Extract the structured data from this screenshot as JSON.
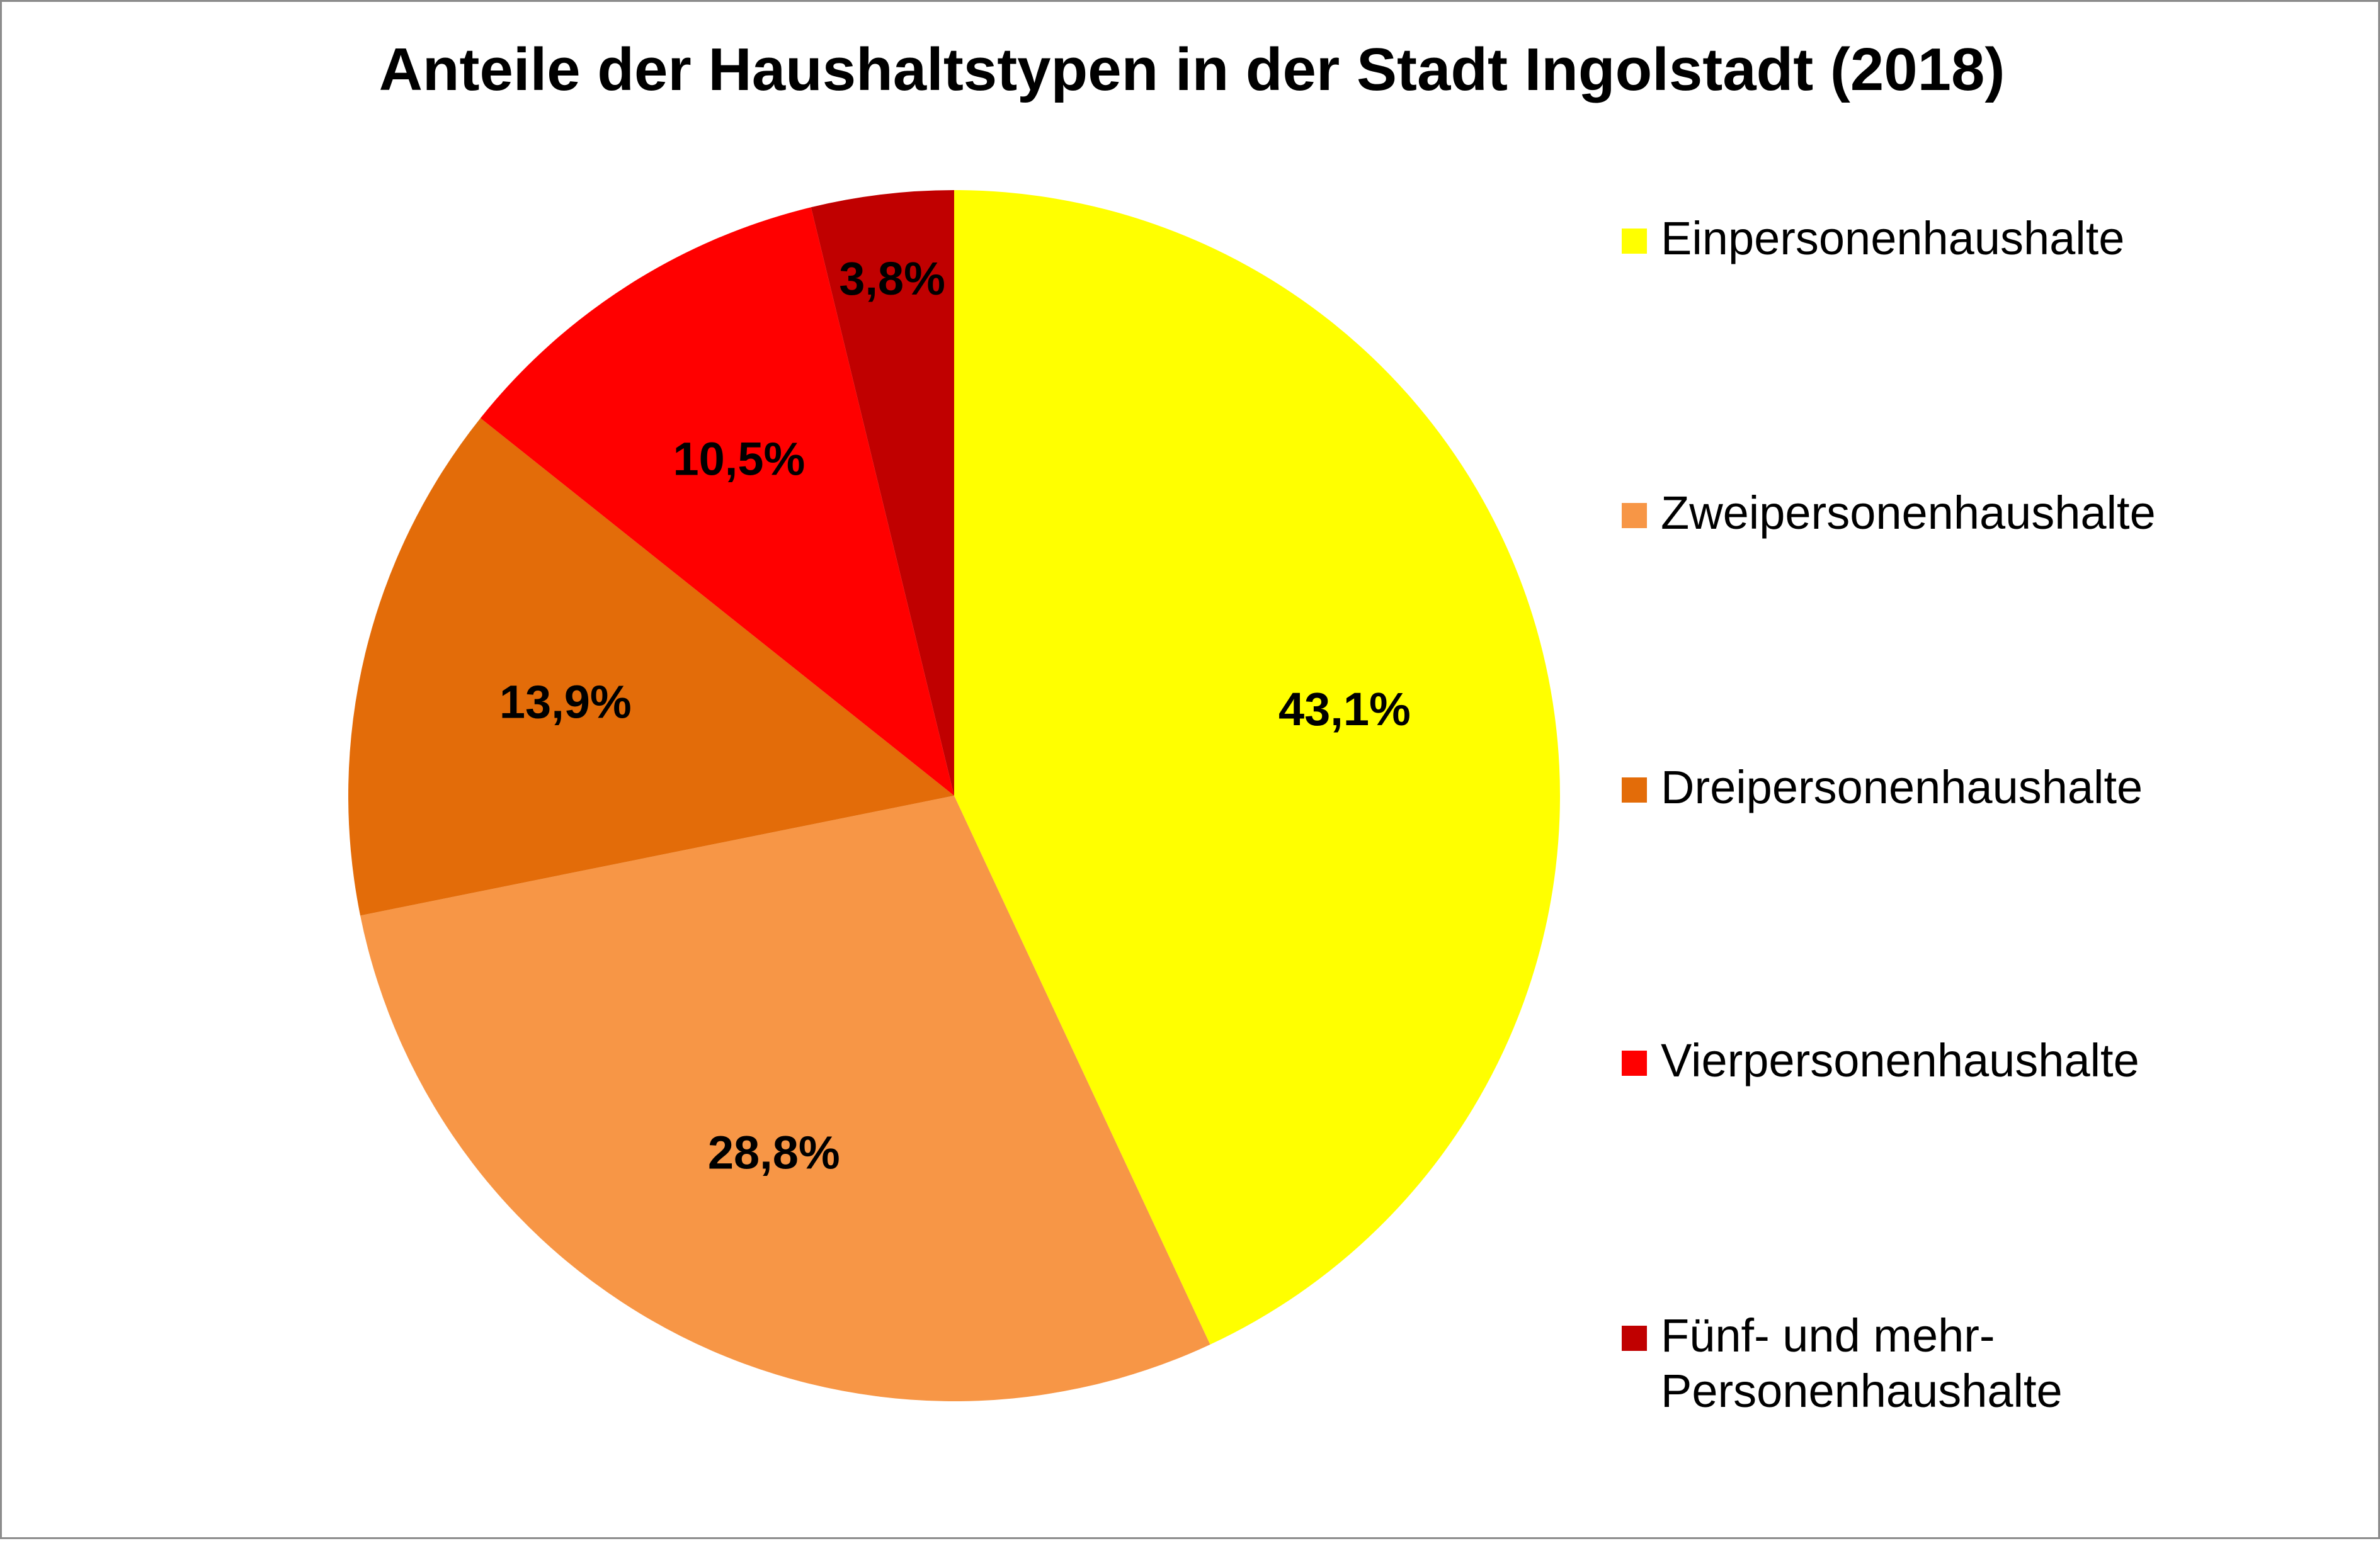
{
  "chart_data": {
    "type": "pie",
    "title": "Anteile der Haushaltstypen in der Stadt Ingolstadt (2018)",
    "categories": [
      "Einpersonenhaushalte",
      "Zweipersonenhaushalte",
      "Dreipersonenhaushalte",
      "Vierpersonenhaushalte",
      "Fünf- und mehr-\nPersonenhaushalte"
    ],
    "values": [
      43.1,
      28.8,
      13.9,
      10.5,
      3.8
    ],
    "labels": [
      "43,1%",
      "28,8%",
      "13,9%",
      "10,5%",
      "3,8%"
    ],
    "colors": [
      "#FFFF00",
      "#F79646",
      "#E36C09",
      "#FF0000",
      "#C00000"
    ],
    "legend_position": "right",
    "start_angle": "top, clockwise"
  }
}
